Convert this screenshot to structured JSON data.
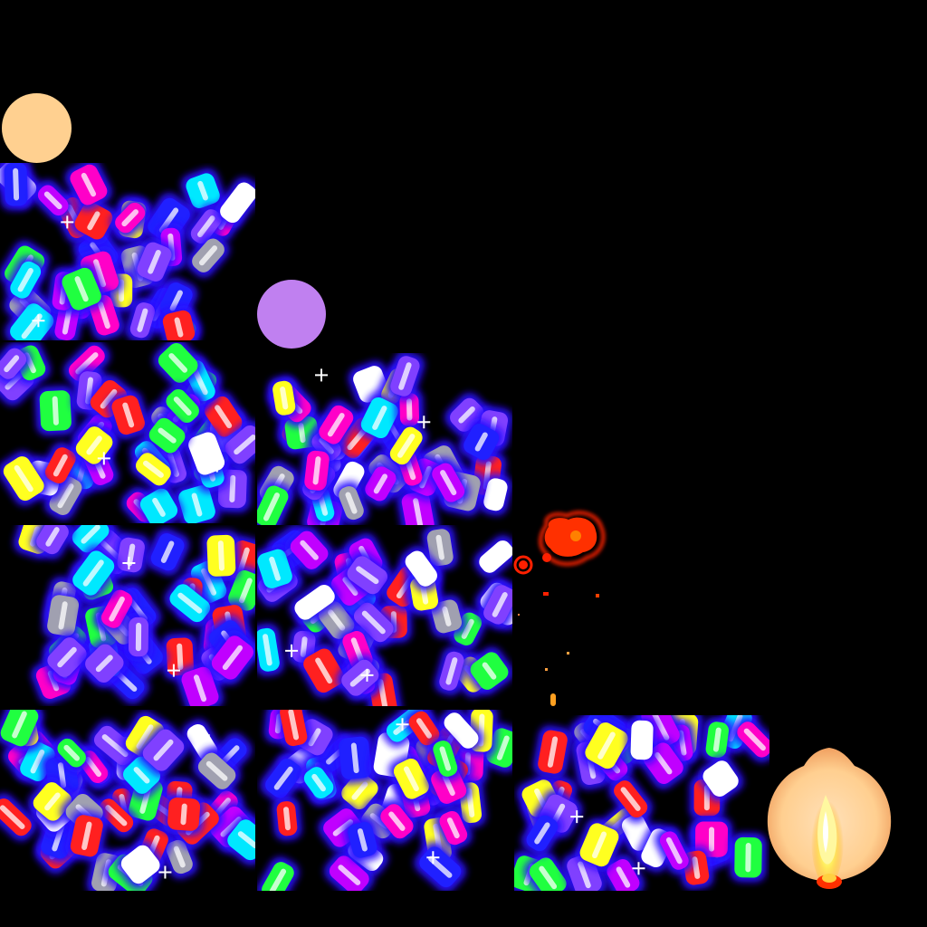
{
  "palette": [
    "#ff2020",
    "#ff00c8",
    "#ffff20",
    "#20ff40",
    "#00e8ff",
    "#8040ff",
    "#2020ff",
    "#ffffff",
    "#a0a0b0",
    "#c000ff"
  ],
  "background": "#000000",
  "sprites": {
    "orb_peach": {
      "color": "#ffd090",
      "icon": "circle"
    },
    "orb_lavender": {
      "color": "#c080f0",
      "icon": "circle"
    },
    "lemon": {
      "color": "#ffcf90",
      "flame": "#fff060",
      "icon": "lemon-flame"
    },
    "red_splat": {
      "color": "#ff2000",
      "icon": "splat"
    }
  },
  "frames": [
    {
      "id": "frame-1",
      "pieces": 34,
      "seed": 11
    },
    {
      "id": "frame-2",
      "pieces": 38,
      "seed": 23
    },
    {
      "id": "frame-3",
      "pieces": 38,
      "seed": 37
    },
    {
      "id": "frame-4",
      "pieces": 36,
      "seed": 41
    },
    {
      "id": "frame-5",
      "pieces": 36,
      "seed": 53
    },
    {
      "id": "frame-6",
      "pieces": 40,
      "seed": 67
    },
    {
      "id": "frame-7",
      "pieces": 40,
      "seed": 71
    },
    {
      "id": "frame-8",
      "pieces": 36,
      "seed": 83
    }
  ]
}
